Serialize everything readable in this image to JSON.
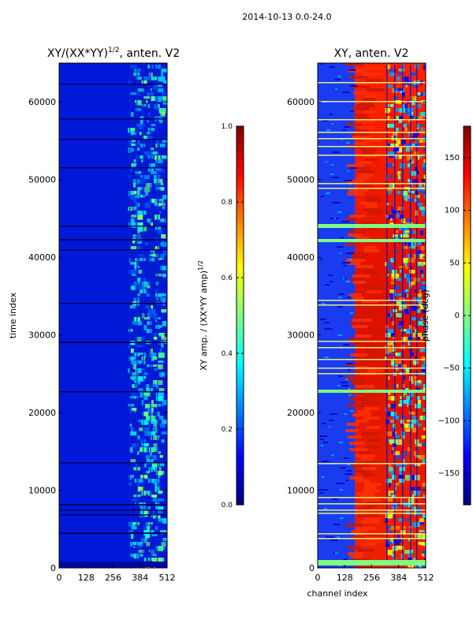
{
  "figure": {
    "suptitle": "2014-10-13 0.0-24.0",
    "shared_xlabel": "channel index"
  },
  "colors": {
    "jet_stops": [
      "#00007f",
      "#0000ff",
      "#007fff",
      "#00ffff",
      "#7fff7f",
      "#ffff00",
      "#ff7f00",
      "#ff0000",
      "#7f0000"
    ],
    "axis_line": "#000000",
    "background": "#ffffff"
  },
  "chart_data": [
    {
      "type": "heatmap",
      "title_main": "XY/(XX*YY)",
      "title_power": "1/2",
      "title_suffix": ", anten. V2",
      "xlabel": "",
      "ylabel": "time index",
      "xlim": [
        0,
        512
      ],
      "ylim": [
        0,
        65000
      ],
      "xticks": [
        "0",
        "128",
        "256",
        "384",
        "512"
      ],
      "yticks": [
        "0",
        "10000",
        "20000",
        "30000",
        "40000",
        "50000",
        "60000"
      ],
      "colorbar": {
        "label_main": "XY amp. / (XX*YY amp)",
        "label_power": "1/2",
        "range": [
          0,
          1
        ],
        "ticks": [
          "0.0",
          "0.2",
          "0.4",
          "0.6",
          "0.8",
          "1.0"
        ]
      }
    },
    {
      "type": "heatmap",
      "title_main": "XY, anten. V2",
      "xlabel": "channel index",
      "ylabel": "",
      "xlim": [
        0,
        512
      ],
      "ylim": [
        0,
        65000
      ],
      "xticks": [
        "0",
        "128",
        "256",
        "384",
        "512"
      ],
      "yticks": [
        "0",
        "10000",
        "20000",
        "30000",
        "40000",
        "50000",
        "60000"
      ],
      "colorbar": {
        "label_main": "phase (deg)",
        "range": [
          -180,
          180
        ],
        "ticks": [
          "−150",
          "−100",
          "−50",
          "0",
          "50",
          "100",
          "150"
        ]
      }
    }
  ]
}
